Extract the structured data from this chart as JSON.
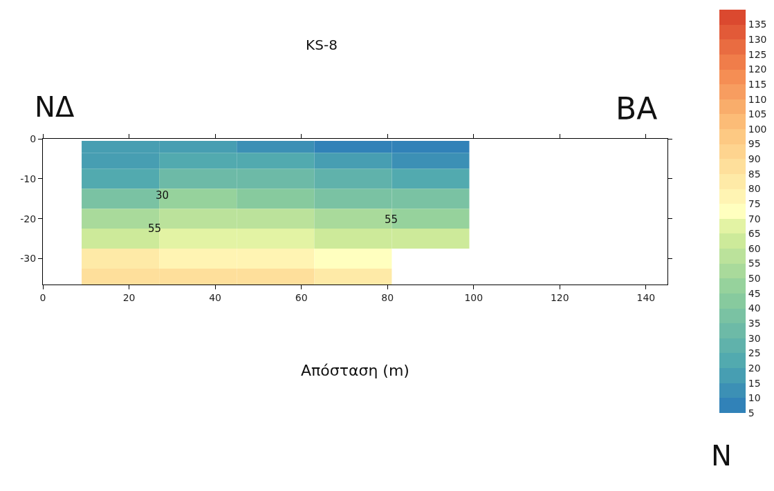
{
  "chart_data": {
    "type": "heatmap",
    "title": "KS-8",
    "xlabel": "Απόσταση (m)",
    "annotations": [
      "ΝΔ",
      "ΒΑ",
      "N",
      "30",
      "55",
      "55"
    ],
    "x": [
      18,
      36,
      54,
      72,
      90
    ],
    "y": [
      -2,
      -5,
      -10,
      -15,
      -20,
      -25,
      -30,
      -35
    ],
    "cells": [
      [
        15,
        17,
        13,
        9,
        8
      ],
      [
        17,
        22,
        20,
        15,
        12
      ],
      [
        21,
        33,
        32,
        26,
        22
      ],
      [
        37,
        45,
        44,
        38,
        35
      ],
      [
        50,
        55,
        55,
        50,
        48
      ],
      [
        60,
        66,
        65,
        62,
        60
      ],
      [
        80,
        75,
        76,
        72,
        null
      ],
      [
        88,
        88,
        85,
        82,
        null
      ]
    ],
    "clim": [
      5,
      140
    ],
    "cticks": [
      5,
      10,
      15,
      20,
      25,
      30,
      35,
      40,
      45,
      50,
      55,
      60,
      65,
      70,
      75,
      80,
      85,
      90,
      95,
      100,
      105,
      110,
      115,
      120,
      125,
      130,
      135
    ],
    "xlim": [
      0,
      145
    ],
    "xticks": [
      0,
      20,
      40,
      60,
      80,
      100,
      120,
      140
    ],
    "ylim": [
      -36.5,
      0
    ],
    "yticks": [
      0,
      -10,
      -20,
      -30
    ]
  }
}
